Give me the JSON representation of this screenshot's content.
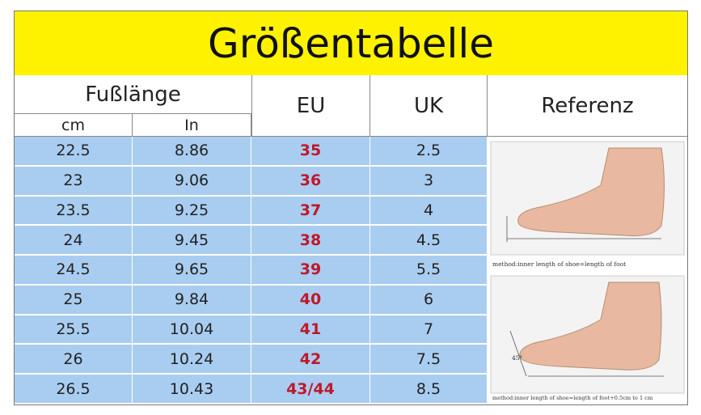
{
  "title": "Größentabelle",
  "headers": {
    "foot_length": "Fußlänge",
    "cm": "cm",
    "in": "In",
    "eu": "EU",
    "uk": "UK",
    "reference": "Referenz"
  },
  "rows": [
    [
      "22.5",
      "8.86",
      "35",
      "2.5"
    ],
    [
      "23",
      "9.06",
      "36",
      "3"
    ],
    [
      "23.5",
      "9.25",
      "37",
      "4"
    ],
    [
      "24",
      "9.45",
      "38",
      "4.5"
    ],
    [
      "24.5",
      "9.65",
      "39",
      "5.5"
    ],
    [
      "25",
      "9.84",
      "40",
      "6"
    ],
    [
      "25.5",
      "10.04",
      "41",
      "7"
    ],
    [
      "26",
      "10.24",
      "42",
      "7.5"
    ],
    [
      "26.5",
      "10.43",
      "43/44",
      "8.5"
    ]
  ],
  "reference": {
    "caption_1": "method:inner length of shoe=length of foot",
    "caption_2": "method:inner length of shoe=length of foot+0.5cm to 1 cm",
    "angle": "45°"
  }
}
